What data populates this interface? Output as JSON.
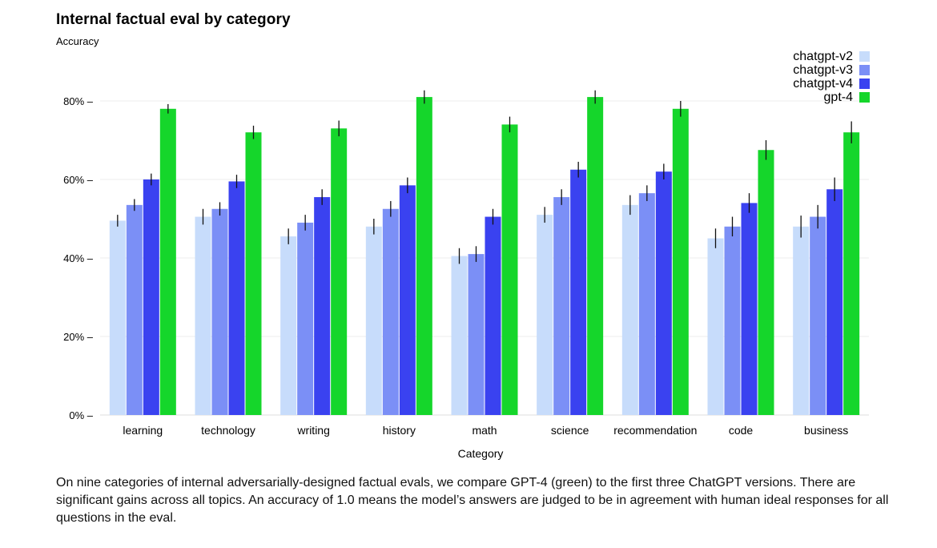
{
  "title": "Internal factual eval by category",
  "subtitle": "Accuracy",
  "caption": "On nine categories of internal adversarially-designed factual evals, we compare GPT-4 (green) to the first three ChatGPT versions. There are significant gains across all topics. An accuracy of 1.0 means the model’s answers are judged to be in agreement with human ideal responses for all questions in the eval.",
  "colors": {
    "chatgpt-v2": "#c7dcfb",
    "chatgpt-v3": "#7b8ff6",
    "chatgpt-v4": "#3a42f0",
    "gpt-4": "#15d62b",
    "grid": "#ececec",
    "axis": "#222222"
  },
  "chart_data": {
    "type": "bar",
    "title": "Internal factual eval by category",
    "ylabel": "Accuracy",
    "xlabel": "Category",
    "ylim": [
      0,
      85
    ],
    "yticks": [
      0,
      20,
      40,
      60,
      80
    ],
    "ytick_labels": [
      "0% –",
      "20% –",
      "40% –",
      "60% –",
      "80% –"
    ],
    "grid": true,
    "legend_position": "top-right",
    "categories": [
      "learning",
      "technology",
      "writing",
      "history",
      "math",
      "science",
      "recommendation",
      "code",
      "business"
    ],
    "series": [
      {
        "name": "chatgpt-v2",
        "values": [
          49.5,
          50.5,
          45.5,
          48,
          40.5,
          51,
          53.5,
          45,
          48
        ],
        "error": [
          1.5,
          2,
          2,
          2,
          2,
          2,
          2.5,
          2.5,
          2.8
        ]
      },
      {
        "name": "chatgpt-v3",
        "values": [
          53.5,
          52.5,
          49,
          52.5,
          41,
          55.5,
          56.5,
          48,
          50.5
        ],
        "error": [
          1.5,
          1.7,
          2,
          2,
          2,
          2,
          2,
          2.5,
          3
        ]
      },
      {
        "name": "chatgpt-v4",
        "values": [
          60,
          59.5,
          55.5,
          58.5,
          50.5,
          62.5,
          62,
          54,
          57.5
        ],
        "error": [
          1.5,
          1.7,
          2,
          2,
          2,
          2,
          2,
          2.5,
          3
        ]
      },
      {
        "name": "gpt-4",
        "values": [
          78,
          72,
          73,
          81,
          74,
          81,
          78,
          67.5,
          72
        ],
        "error": [
          1.2,
          1.7,
          2,
          1.7,
          2,
          1.7,
          2,
          2.5,
          2.8
        ]
      }
    ]
  }
}
